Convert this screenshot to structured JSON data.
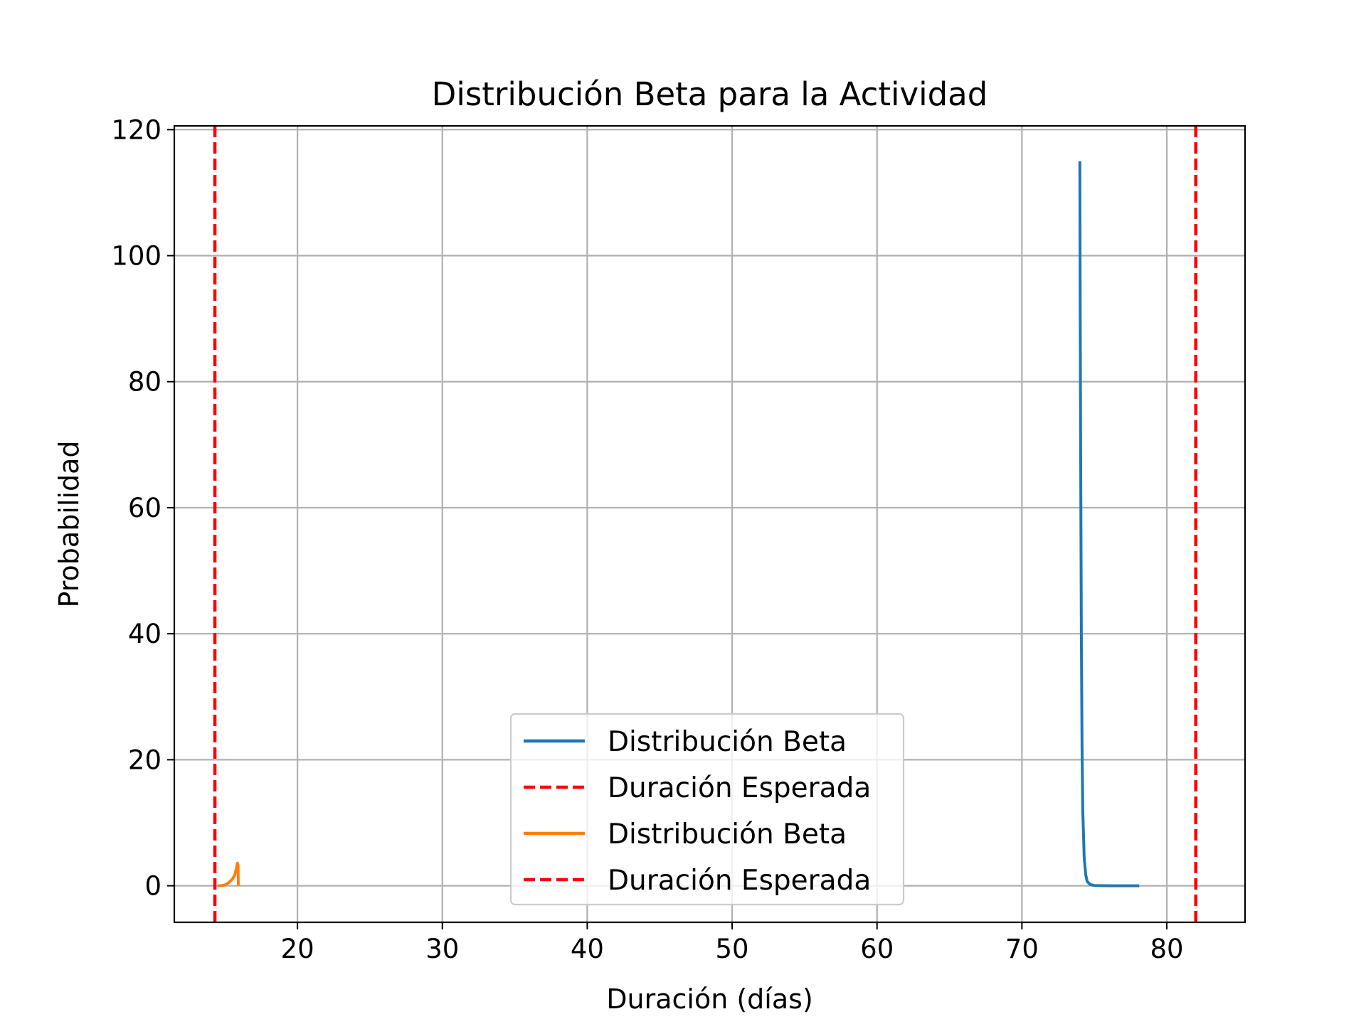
{
  "chart_data": {
    "type": "line",
    "title": "Distribución Beta para la Actividad",
    "xlabel": "Duración (días)",
    "ylabel": "Probabilidad",
    "xlim": [
      11.5,
      85.4
    ],
    "ylim": [
      -5.8,
      120.6
    ],
    "xticks": [
      20,
      30,
      40,
      50,
      60,
      70,
      80
    ],
    "yticks": [
      0,
      20,
      40,
      60,
      80,
      100,
      120
    ],
    "grid": true,
    "legend_position": "lower center",
    "series": [
      {
        "name": "Distribución Beta",
        "kind": "line",
        "color": "#1f77b4",
        "x": [
          74.0,
          74.02,
          74.05,
          74.1,
          74.15,
          74.2,
          74.3,
          74.4,
          74.5,
          74.7,
          75.0,
          76.0,
          77.0,
          78.1
        ],
        "y": [
          115,
          95,
          70,
          40,
          22,
          12,
          4.5,
          1.8,
          0.7,
          0.2,
          0.05,
          0.0,
          0.0,
          0.0
        ]
      },
      {
        "name": "Duración Esperada",
        "kind": "vline",
        "color": "#ff0000",
        "dash": true,
        "x": 82.0
      },
      {
        "name": "Distribución Beta",
        "kind": "line",
        "color": "#ff7f0e",
        "x": [
          14.5,
          14.8,
          15.0,
          15.2,
          15.4,
          15.55,
          15.65,
          15.75,
          15.8,
          15.85,
          15.9,
          15.92
        ],
        "y": [
          0.0,
          0.05,
          0.15,
          0.4,
          0.8,
          1.2,
          1.6,
          2.4,
          3.0,
          3.6,
          3.3,
          0.0
        ]
      },
      {
        "name": "Duración Esperada",
        "kind": "vline",
        "color": "#ff0000",
        "dash": true,
        "x": 14.3
      }
    ]
  }
}
